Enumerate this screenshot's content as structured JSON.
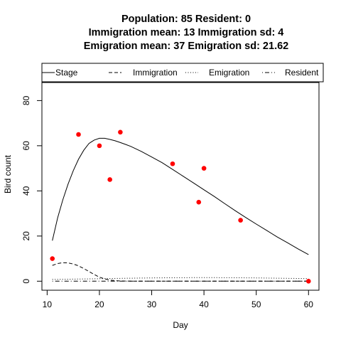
{
  "chart_data": {
    "type": "line",
    "title_lines": [
      "Population: 85 Resident: 0",
      "Immigration mean: 13 Immigration sd: 4",
      "Emigration mean: 37 Emigration sd: 21.62"
    ],
    "xlabel": "Day",
    "ylabel": "Bird count",
    "xlim": [
      9,
      62
    ],
    "ylim": [
      -4,
      88
    ],
    "x_ticks": [
      10,
      20,
      30,
      40,
      50,
      60
    ],
    "y_ticks": [
      0,
      20,
      40,
      60,
      80
    ],
    "grid": false,
    "legend_position": "top",
    "legend": [
      {
        "label": "Stage",
        "style": "solid"
      },
      {
        "label": "Immigration",
        "style": "dashed"
      },
      {
        "label": "Emigration",
        "style": "dotted"
      },
      {
        "label": "Resident",
        "style": "dotdash"
      }
    ],
    "series": [
      {
        "name": "Stage",
        "style": "solid",
        "x": [
          11,
          12,
          13,
          14,
          15,
          16,
          17,
          18,
          19,
          20,
          21,
          22,
          23,
          24,
          25,
          26,
          28,
          30,
          32,
          34,
          36,
          38,
          40,
          42,
          44,
          46,
          48,
          50,
          52,
          54,
          56,
          58,
          60
        ],
        "y": [
          18,
          28,
          36,
          43,
          49,
          54,
          58,
          61,
          62.5,
          63.3,
          63.3,
          62.8,
          62.2,
          61.4,
          60.6,
          59.7,
          57.5,
          55,
          52.5,
          49.5,
          46.5,
          43.5,
          40.5,
          37.5,
          34.3,
          31.2,
          28.2,
          25.3,
          22.5,
          19.6,
          17,
          14.3,
          11.8
        ]
      },
      {
        "name": "Immigration",
        "style": "dashed",
        "x": [
          11,
          12,
          13,
          14,
          15,
          16,
          17,
          18,
          19,
          20,
          21,
          22,
          23,
          24,
          25,
          26,
          30,
          35,
          40,
          45,
          50,
          55,
          60
        ],
        "y": [
          7,
          7.8,
          8.2,
          8.1,
          7.6,
          6.8,
          5.6,
          4.3,
          3,
          1.8,
          1,
          0.5,
          0.25,
          0.1,
          0.05,
          0,
          0,
          0,
          0,
          0,
          0,
          0,
          0
        ]
      },
      {
        "name": "Emigration",
        "style": "dotted",
        "x": [
          11,
          15,
          20,
          25,
          30,
          35,
          40,
          45,
          50,
          55,
          60
        ],
        "y": [
          0.8,
          0.9,
          1.1,
          1.3,
          1.45,
          1.55,
          1.6,
          1.55,
          1.45,
          1.3,
          1.15
        ]
      },
      {
        "name": "Resident",
        "style": "dotdash",
        "x": [
          11,
          60
        ],
        "y": [
          0,
          0
        ]
      }
    ],
    "observations": {
      "color": "#ff0000",
      "x": [
        11,
        16,
        20,
        22,
        24,
        34,
        39,
        40,
        47,
        60
      ],
      "y": [
        10,
        65,
        60,
        45,
        66,
        52,
        35,
        50,
        27,
        0
      ]
    }
  }
}
